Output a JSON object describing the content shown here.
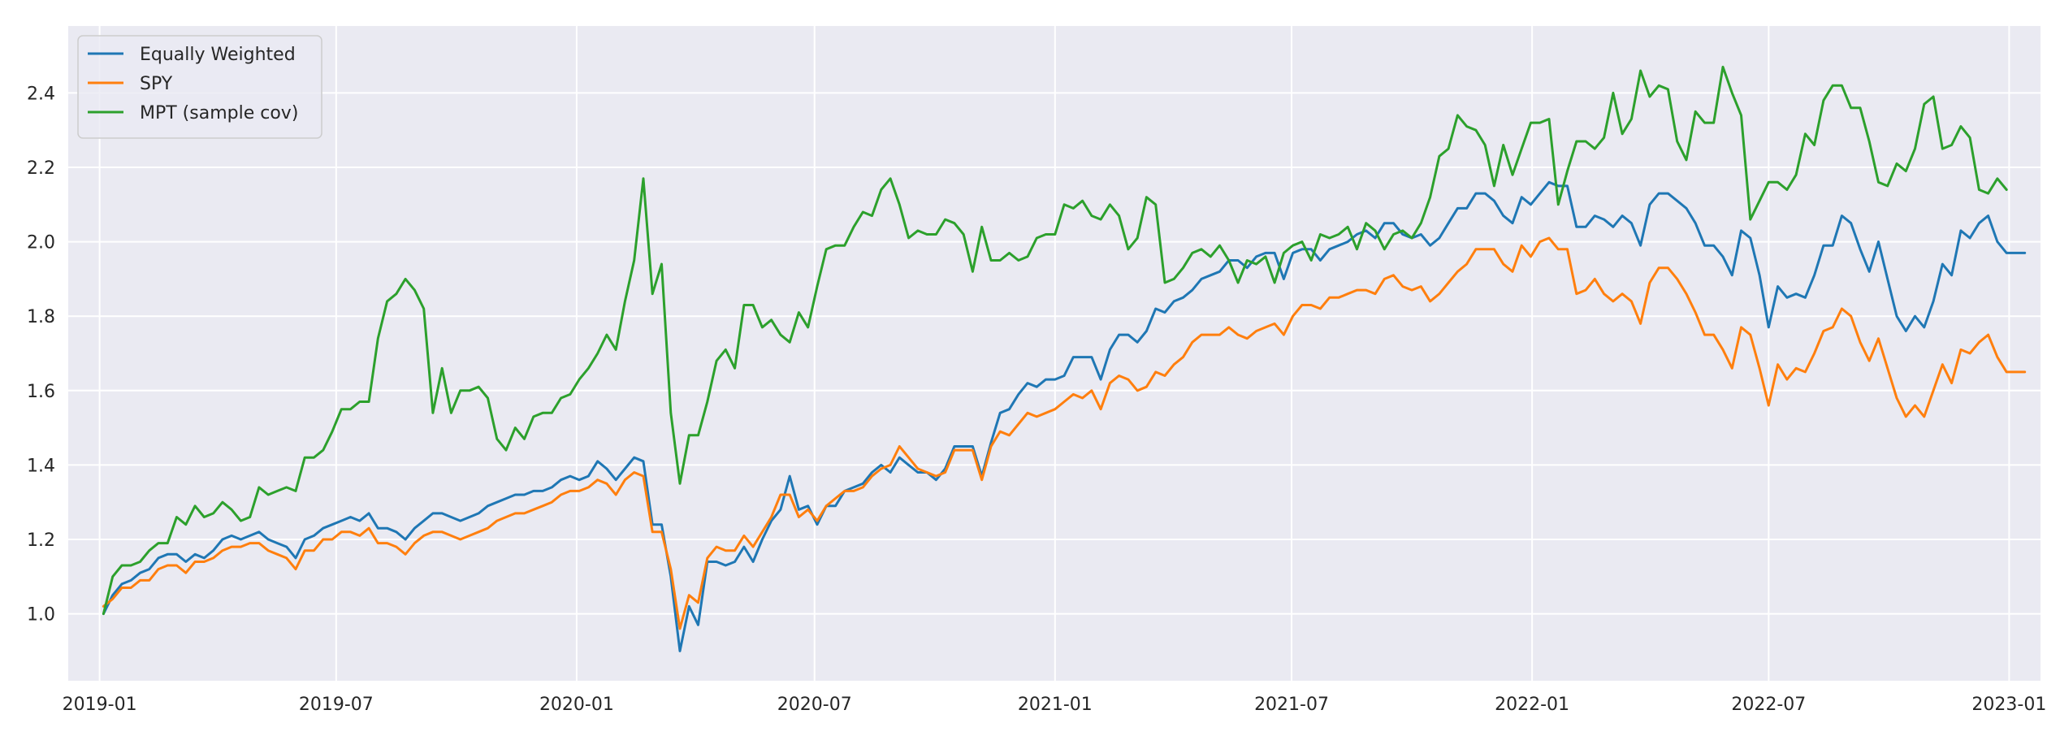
{
  "page_title": "",
  "chart_data": {
    "type": "line",
    "title": "",
    "xlabel": "",
    "ylabel": "",
    "ylim": [
      0.82,
      2.58
    ],
    "xlim": [
      "2018-12-08",
      "2023-01-25"
    ],
    "x_tick_labels": [
      "2019-01",
      "2019-07",
      "2020-01",
      "2020-07",
      "2021-01",
      "2021-07",
      "2022-01",
      "2022-07",
      "2023-01"
    ],
    "y_tick_values": [
      1.0,
      1.2,
      1.4,
      1.6,
      1.8,
      2.0,
      2.2,
      2.4
    ],
    "y_tick_labels": [
      "1.0",
      "1.2",
      "1.4",
      "1.6",
      "1.8",
      "2.0",
      "2.2",
      "2.4"
    ],
    "grid": true,
    "background": "#eaeaf2",
    "legend_position": "upper-left",
    "x_start": "2019-01-04",
    "x_step_days": 7,
    "series": [
      {
        "name": "Equally Weighted",
        "color": "#1f77b4",
        "values": [
          1.0,
          1.05,
          1.08,
          1.09,
          1.11,
          1.12,
          1.15,
          1.16,
          1.16,
          1.14,
          1.16,
          1.15,
          1.17,
          1.2,
          1.21,
          1.2,
          1.21,
          1.22,
          1.2,
          1.19,
          1.18,
          1.15,
          1.2,
          1.21,
          1.23,
          1.24,
          1.25,
          1.26,
          1.25,
          1.27,
          1.23,
          1.23,
          1.22,
          1.2,
          1.23,
          1.25,
          1.27,
          1.27,
          1.26,
          1.25,
          1.26,
          1.27,
          1.29,
          1.3,
          1.31,
          1.32,
          1.32,
          1.33,
          1.33,
          1.34,
          1.36,
          1.37,
          1.36,
          1.37,
          1.41,
          1.39,
          1.36,
          1.39,
          1.42,
          1.41,
          1.24,
          1.24,
          1.1,
          0.9,
          1.02,
          0.97,
          1.14,
          1.14,
          1.13,
          1.14,
          1.18,
          1.14,
          1.2,
          1.25,
          1.28,
          1.37,
          1.28,
          1.29,
          1.24,
          1.29,
          1.29,
          1.33,
          1.34,
          1.35,
          1.38,
          1.4,
          1.38,
          1.42,
          1.4,
          1.38,
          1.38,
          1.36,
          1.39,
          1.45,
          1.45,
          1.45,
          1.37,
          1.46,
          1.54,
          1.55,
          1.59,
          1.62,
          1.61,
          1.63,
          1.63,
          1.64,
          1.69,
          1.69,
          1.69,
          1.63,
          1.71,
          1.75,
          1.75,
          1.73,
          1.76,
          1.82,
          1.81,
          1.84,
          1.85,
          1.87,
          1.9,
          1.91,
          1.92,
          1.95,
          1.95,
          1.93,
          1.96,
          1.97,
          1.97,
          1.9,
          1.97,
          1.98,
          1.98,
          1.95,
          1.98,
          1.99,
          2.0,
          2.02,
          2.03,
          2.01,
          2.05,
          2.05,
          2.02,
          2.01,
          2.02,
          1.99,
          2.01,
          2.05,
          2.09,
          2.09,
          2.13,
          2.13,
          2.11,
          2.07,
          2.05,
          2.12,
          2.1,
          2.13,
          2.16,
          2.15,
          2.15,
          2.04,
          2.04,
          2.07,
          2.06,
          2.04,
          2.07,
          2.05,
          1.99,
          2.1,
          2.13,
          2.13,
          2.11,
          2.09,
          2.05,
          1.99,
          1.99,
          1.96,
          1.91,
          2.03,
          2.01,
          1.91,
          1.77,
          1.88,
          1.85,
          1.86,
          1.85,
          1.91,
          1.99,
          1.99,
          2.07,
          2.05,
          1.98,
          1.92,
          2.0,
          1.9,
          1.8,
          1.76,
          1.8,
          1.77,
          1.84,
          1.94,
          1.91,
          2.03,
          2.01,
          2.05,
          2.07,
          2.0,
          1.97,
          1.97,
          1.97
        ]
      },
      {
        "name": "SPY",
        "color": "#ff7f0e",
        "values": [
          1.02,
          1.04,
          1.07,
          1.07,
          1.09,
          1.09,
          1.12,
          1.13,
          1.13,
          1.11,
          1.14,
          1.14,
          1.15,
          1.17,
          1.18,
          1.18,
          1.19,
          1.19,
          1.17,
          1.16,
          1.15,
          1.12,
          1.17,
          1.17,
          1.2,
          1.2,
          1.22,
          1.22,
          1.21,
          1.23,
          1.19,
          1.19,
          1.18,
          1.16,
          1.19,
          1.21,
          1.22,
          1.22,
          1.21,
          1.2,
          1.21,
          1.22,
          1.23,
          1.25,
          1.26,
          1.27,
          1.27,
          1.28,
          1.29,
          1.3,
          1.32,
          1.33,
          1.33,
          1.34,
          1.36,
          1.35,
          1.32,
          1.36,
          1.38,
          1.37,
          1.22,
          1.22,
          1.12,
          0.96,
          1.05,
          1.03,
          1.15,
          1.18,
          1.17,
          1.17,
          1.21,
          1.18,
          1.22,
          1.26,
          1.32,
          1.32,
          1.26,
          1.28,
          1.25,
          1.29,
          1.31,
          1.33,
          1.33,
          1.34,
          1.37,
          1.39,
          1.4,
          1.45,
          1.42,
          1.39,
          1.38,
          1.37,
          1.38,
          1.44,
          1.44,
          1.44,
          1.36,
          1.45,
          1.49,
          1.48,
          1.51,
          1.54,
          1.53,
          1.54,
          1.55,
          1.57,
          1.59,
          1.58,
          1.6,
          1.55,
          1.62,
          1.64,
          1.63,
          1.6,
          1.61,
          1.65,
          1.64,
          1.67,
          1.69,
          1.73,
          1.75,
          1.75,
          1.75,
          1.77,
          1.75,
          1.74,
          1.76,
          1.77,
          1.78,
          1.75,
          1.8,
          1.83,
          1.83,
          1.82,
          1.85,
          1.85,
          1.86,
          1.87,
          1.87,
          1.86,
          1.9,
          1.91,
          1.88,
          1.87,
          1.88,
          1.84,
          1.86,
          1.89,
          1.92,
          1.94,
          1.98,
          1.98,
          1.98,
          1.94,
          1.92,
          1.99,
          1.96,
          2.0,
          2.01,
          1.98,
          1.98,
          1.86,
          1.87,
          1.9,
          1.86,
          1.84,
          1.86,
          1.84,
          1.78,
          1.89,
          1.93,
          1.93,
          1.9,
          1.86,
          1.81,
          1.75,
          1.75,
          1.71,
          1.66,
          1.77,
          1.75,
          1.66,
          1.56,
          1.67,
          1.63,
          1.66,
          1.65,
          1.7,
          1.76,
          1.77,
          1.82,
          1.8,
          1.73,
          1.68,
          1.74,
          1.66,
          1.58,
          1.53,
          1.56,
          1.53,
          1.6,
          1.67,
          1.62,
          1.71,
          1.7,
          1.73,
          1.75,
          1.69,
          1.65,
          1.65,
          1.65
        ]
      },
      {
        "name": "MPT (sample cov)",
        "color": "#2ca02c",
        "values": [
          1.0,
          1.1,
          1.13,
          1.13,
          1.14,
          1.17,
          1.19,
          1.19,
          1.26,
          1.24,
          1.29,
          1.26,
          1.27,
          1.3,
          1.28,
          1.25,
          1.26,
          1.34,
          1.32,
          1.33,
          1.34,
          1.33,
          1.42,
          1.42,
          1.44,
          1.49,
          1.55,
          1.55,
          1.57,
          1.57,
          1.74,
          1.84,
          1.86,
          1.9,
          1.87,
          1.82,
          1.54,
          1.66,
          1.54,
          1.6,
          1.6,
          1.61,
          1.58,
          1.47,
          1.44,
          1.5,
          1.47,
          1.53,
          1.54,
          1.54,
          1.58,
          1.59,
          1.63,
          1.66,
          1.7,
          1.75,
          1.71,
          1.84,
          1.95,
          2.17,
          1.86,
          1.94,
          1.54,
          1.35,
          1.48,
          1.48,
          1.57,
          1.68,
          1.71,
          1.66,
          1.83,
          1.83,
          1.77,
          1.79,
          1.75,
          1.73,
          1.81,
          1.77,
          1.88,
          1.98,
          1.99,
          1.99,
          2.04,
          2.08,
          2.07,
          2.14,
          2.17,
          2.1,
          2.01,
          2.03,
          2.02,
          2.02,
          2.06,
          2.05,
          2.02,
          1.92,
          2.04,
          1.95,
          1.95,
          1.97,
          1.95,
          1.96,
          2.01,
          2.02,
          2.02,
          2.1,
          2.09,
          2.11,
          2.07,
          2.06,
          2.1,
          2.07,
          1.98,
          2.01,
          2.12,
          2.1,
          1.89,
          1.9,
          1.93,
          1.97,
          1.98,
          1.96,
          1.99,
          1.95,
          1.89,
          1.95,
          1.94,
          1.96,
          1.89,
          1.97,
          1.99,
          2.0,
          1.95,
          2.02,
          2.01,
          2.02,
          2.04,
          1.98,
          2.05,
          2.03,
          1.98,
          2.02,
          2.03,
          2.01,
          2.05,
          2.12,
          2.23,
          2.25,
          2.34,
          2.31,
          2.3,
          2.26,
          2.15,
          2.26,
          2.18,
          2.25,
          2.32,
          2.32,
          2.33,
          2.1,
          2.19,
          2.27,
          2.27,
          2.25,
          2.28,
          2.4,
          2.29,
          2.33,
          2.46,
          2.39,
          2.42,
          2.41,
          2.27,
          2.22,
          2.35,
          2.32,
          2.32,
          2.47,
          2.4,
          2.34,
          2.06,
          2.11,
          2.16,
          2.16,
          2.14,
          2.18,
          2.29,
          2.26,
          2.38,
          2.42,
          2.42,
          2.36,
          2.36,
          2.27,
          2.16,
          2.15,
          2.21,
          2.19,
          2.25,
          2.37,
          2.39,
          2.25,
          2.26,
          2.31,
          2.28,
          2.14,
          2.13,
          2.17,
          2.14
        ]
      }
    ]
  }
}
